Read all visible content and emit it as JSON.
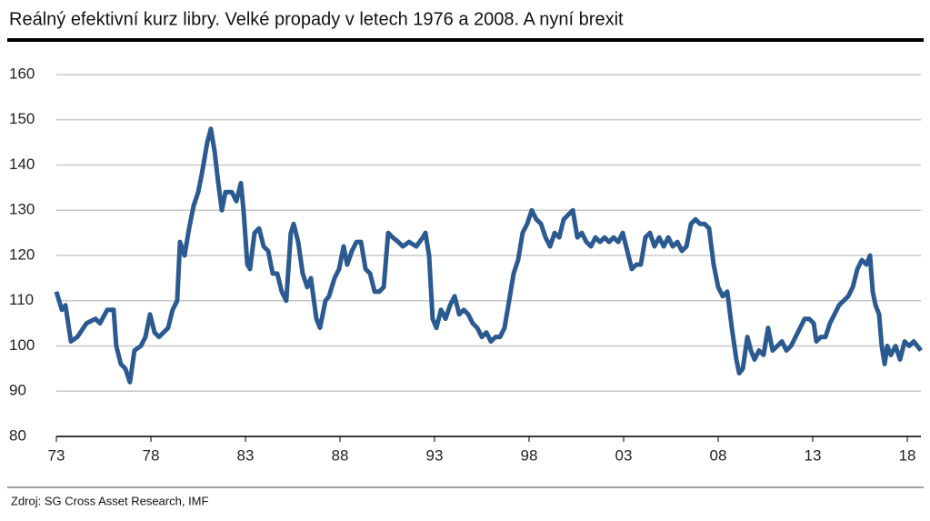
{
  "chart_data": {
    "type": "line",
    "title": "Reálný efektivní kurz libry. Velké propady v letech 1976 a 2008. A nyní brexit",
    "source": "Zdroj: SG Cross Asset Research, IMF",
    "xlim": [
      1973,
      2018.72
    ],
    "xticks": [
      {
        "value": 1973,
        "label": "73"
      },
      {
        "value": 1978,
        "label": "78"
      },
      {
        "value": 1983,
        "label": "83"
      },
      {
        "value": 1988,
        "label": "88"
      },
      {
        "value": 1993,
        "label": "93"
      },
      {
        "value": 1998,
        "label": "98"
      },
      {
        "value": 2003,
        "label": "03"
      },
      {
        "value": 2008,
        "label": "08"
      },
      {
        "value": 2013,
        "label": "13"
      },
      {
        "value": 2018,
        "label": "18"
      }
    ],
    "ylim": [
      80,
      160
    ],
    "yticks": [
      80,
      90,
      100,
      110,
      120,
      130,
      140,
      150,
      160
    ],
    "grid": true,
    "x": [
      1973.0,
      1973.29,
      1973.48,
      1973.77,
      1974.11,
      1974.59,
      1975.07,
      1975.31,
      1975.69,
      1976.03,
      1976.17,
      1976.41,
      1976.65,
      1976.89,
      1977.13,
      1977.47,
      1977.71,
      1977.95,
      1978.19,
      1978.43,
      1978.67,
      1978.91,
      1979.15,
      1979.39,
      1979.54,
      1979.78,
      1980.02,
      1980.26,
      1980.5,
      1980.69,
      1980.98,
      1981.17,
      1981.37,
      1981.56,
      1981.75,
      1981.94,
      1982.28,
      1982.52,
      1982.76,
      1982.9,
      1983.1,
      1983.24,
      1983.48,
      1983.72,
      1983.96,
      1984.2,
      1984.44,
      1984.68,
      1984.92,
      1985.16,
      1985.4,
      1985.55,
      1985.79,
      1986.03,
      1986.27,
      1986.46,
      1986.75,
      1986.94,
      1987.23,
      1987.42,
      1987.71,
      1987.95,
      1988.19,
      1988.38,
      1988.63,
      1988.87,
      1989.11,
      1989.35,
      1989.59,
      1989.83,
      1990.07,
      1990.31,
      1990.55,
      1990.79,
      1991.08,
      1991.32,
      1991.65,
      1992.04,
      1992.38,
      1992.52,
      1992.71,
      1992.9,
      1993.1,
      1993.34,
      1993.58,
      1993.82,
      1994.06,
      1994.3,
      1994.54,
      1994.78,
      1995.02,
      1995.26,
      1995.5,
      1995.74,
      1995.98,
      1996.22,
      1996.46,
      1996.7,
      1996.94,
      1997.18,
      1997.42,
      1997.66,
      1997.9,
      1998.14,
      1998.38,
      1998.63,
      1998.87,
      1999.11,
      1999.35,
      1999.59,
      1999.83,
      2000.07,
      2000.31,
      2000.55,
      2000.79,
      2001.03,
      2001.27,
      2001.51,
      2001.75,
      2001.99,
      2002.23,
      2002.47,
      2002.71,
      2002.95,
      2003.19,
      2003.43,
      2003.67,
      2003.91,
      2004.15,
      2004.39,
      2004.63,
      2004.88,
      2005.12,
      2005.36,
      2005.6,
      2005.84,
      2006.08,
      2006.32,
      2006.56,
      2006.8,
      2007.04,
      2007.28,
      2007.52,
      2007.76,
      2008.0,
      2008.24,
      2008.48,
      2008.72,
      2008.96,
      2009.11,
      2009.3,
      2009.54,
      2009.73,
      2009.92,
      2010.16,
      2010.4,
      2010.64,
      2010.88,
      2011.13,
      2011.37,
      2011.61,
      2011.85,
      2012.09,
      2012.33,
      2012.57,
      2012.81,
      2013.05,
      2013.19,
      2013.43,
      2013.67,
      2013.91,
      2014.15,
      2014.39,
      2014.63,
      2014.88,
      2015.12,
      2015.36,
      2015.6,
      2015.84,
      2016.03,
      2016.17,
      2016.32,
      2016.51,
      2016.65,
      2016.8,
      2016.94,
      2017.13,
      2017.38,
      2017.62,
      2017.86,
      2018.1,
      2018.34,
      2018.72
    ],
    "series": [
      {
        "color": "#2b5a91",
        "values": [
          112,
          108,
          109,
          101,
          102,
          105,
          106,
          105,
          108,
          108,
          100,
          96,
          95,
          92,
          99,
          100,
          102,
          107,
          103,
          102,
          103,
          104,
          108,
          110,
          123,
          120,
          126,
          131,
          134,
          138,
          145,
          148,
          143,
          136,
          130,
          134,
          134,
          132,
          136,
          130,
          118,
          117,
          125,
          126,
          122,
          121,
          116,
          116,
          112,
          110,
          125,
          127,
          123,
          116,
          113,
          115,
          106,
          104,
          110,
          111,
          115,
          117,
          122,
          118,
          121,
          123,
          123,
          117,
          116,
          112,
          112,
          113,
          125,
          124,
          123,
          122,
          123,
          122,
          124,
          125,
          120,
          106,
          104,
          108,
          106,
          109,
          111,
          107,
          108,
          107,
          105,
          104,
          102,
          103,
          101,
          102,
          102,
          104,
          110,
          116,
          119,
          125,
          127,
          130,
          128,
          127,
          124,
          122,
          125,
          124,
          128,
          129,
          130,
          124,
          125,
          123,
          122,
          124,
          123,
          124,
          123,
          124,
          123,
          125,
          121,
          117,
          118,
          118,
          124,
          125,
          122,
          124,
          122,
          124,
          122,
          123,
          121,
          122,
          127,
          128,
          127,
          127,
          126,
          118,
          113,
          111,
          112,
          104,
          97,
          94,
          95,
          102,
          99,
          97,
          99,
          98,
          104,
          99,
          100,
          101,
          99,
          100,
          102,
          104,
          106,
          106,
          105,
          101,
          102,
          102,
          105,
          107,
          109,
          110,
          111,
          113,
          117,
          119,
          118,
          120,
          112,
          109,
          107,
          100,
          96,
          100,
          98,
          100,
          97,
          101,
          100,
          101,
          99
        ]
      }
    ]
  }
}
